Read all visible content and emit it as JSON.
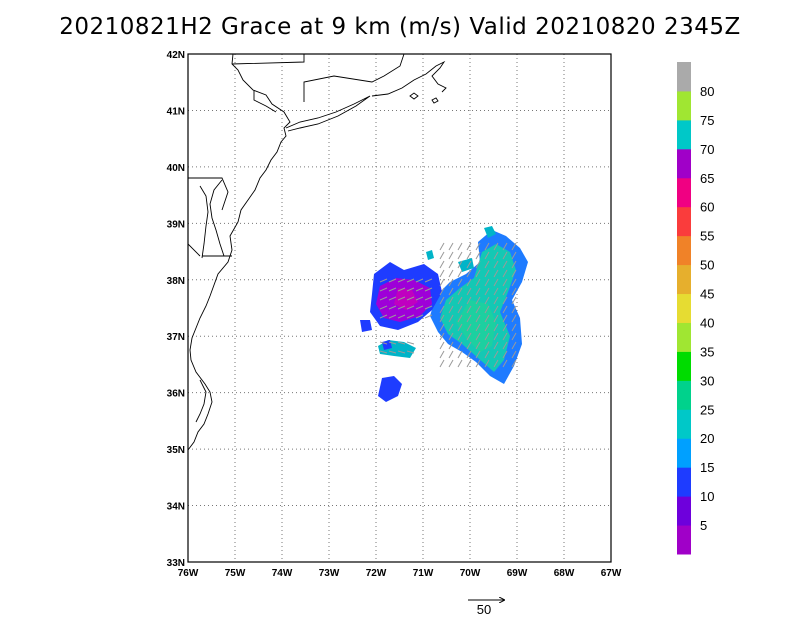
{
  "title": "20210821H2 Grace at 9 km (m/s) Valid 20210820 2345Z",
  "map": {
    "lon_range": [
      -76,
      -67
    ],
    "lat_range": [
      33,
      42
    ],
    "lon_ticks": [
      "76W",
      "75W",
      "74W",
      "73W",
      "72W",
      "71W",
      "70W",
      "69W",
      "68W",
      "67W"
    ],
    "lat_ticks": [
      "33N",
      "34N",
      "35N",
      "36N",
      "37N",
      "38N",
      "39N",
      "40N",
      "41N",
      "42N"
    ],
    "grid": "dotted"
  },
  "colorbar": {
    "labels": [
      "5",
      "10",
      "15",
      "20",
      "25",
      "30",
      "35",
      "40",
      "45",
      "50",
      "55",
      "60",
      "65",
      "70",
      "75",
      "80"
    ],
    "colors": [
      "#a000c8",
      "#6e00dc",
      "#1e3cff",
      "#00a0ff",
      "#00c8c8",
      "#00d28c",
      "#00dc00",
      "#a0e632",
      "#e6dc32",
      "#e6af2d",
      "#f08228",
      "#fa3c3c",
      "#f00082",
      "#a000c8",
      "#00c8c8",
      "#a0e632",
      "#aaaaaa"
    ]
  },
  "reference_vector": {
    "label": "50"
  }
}
